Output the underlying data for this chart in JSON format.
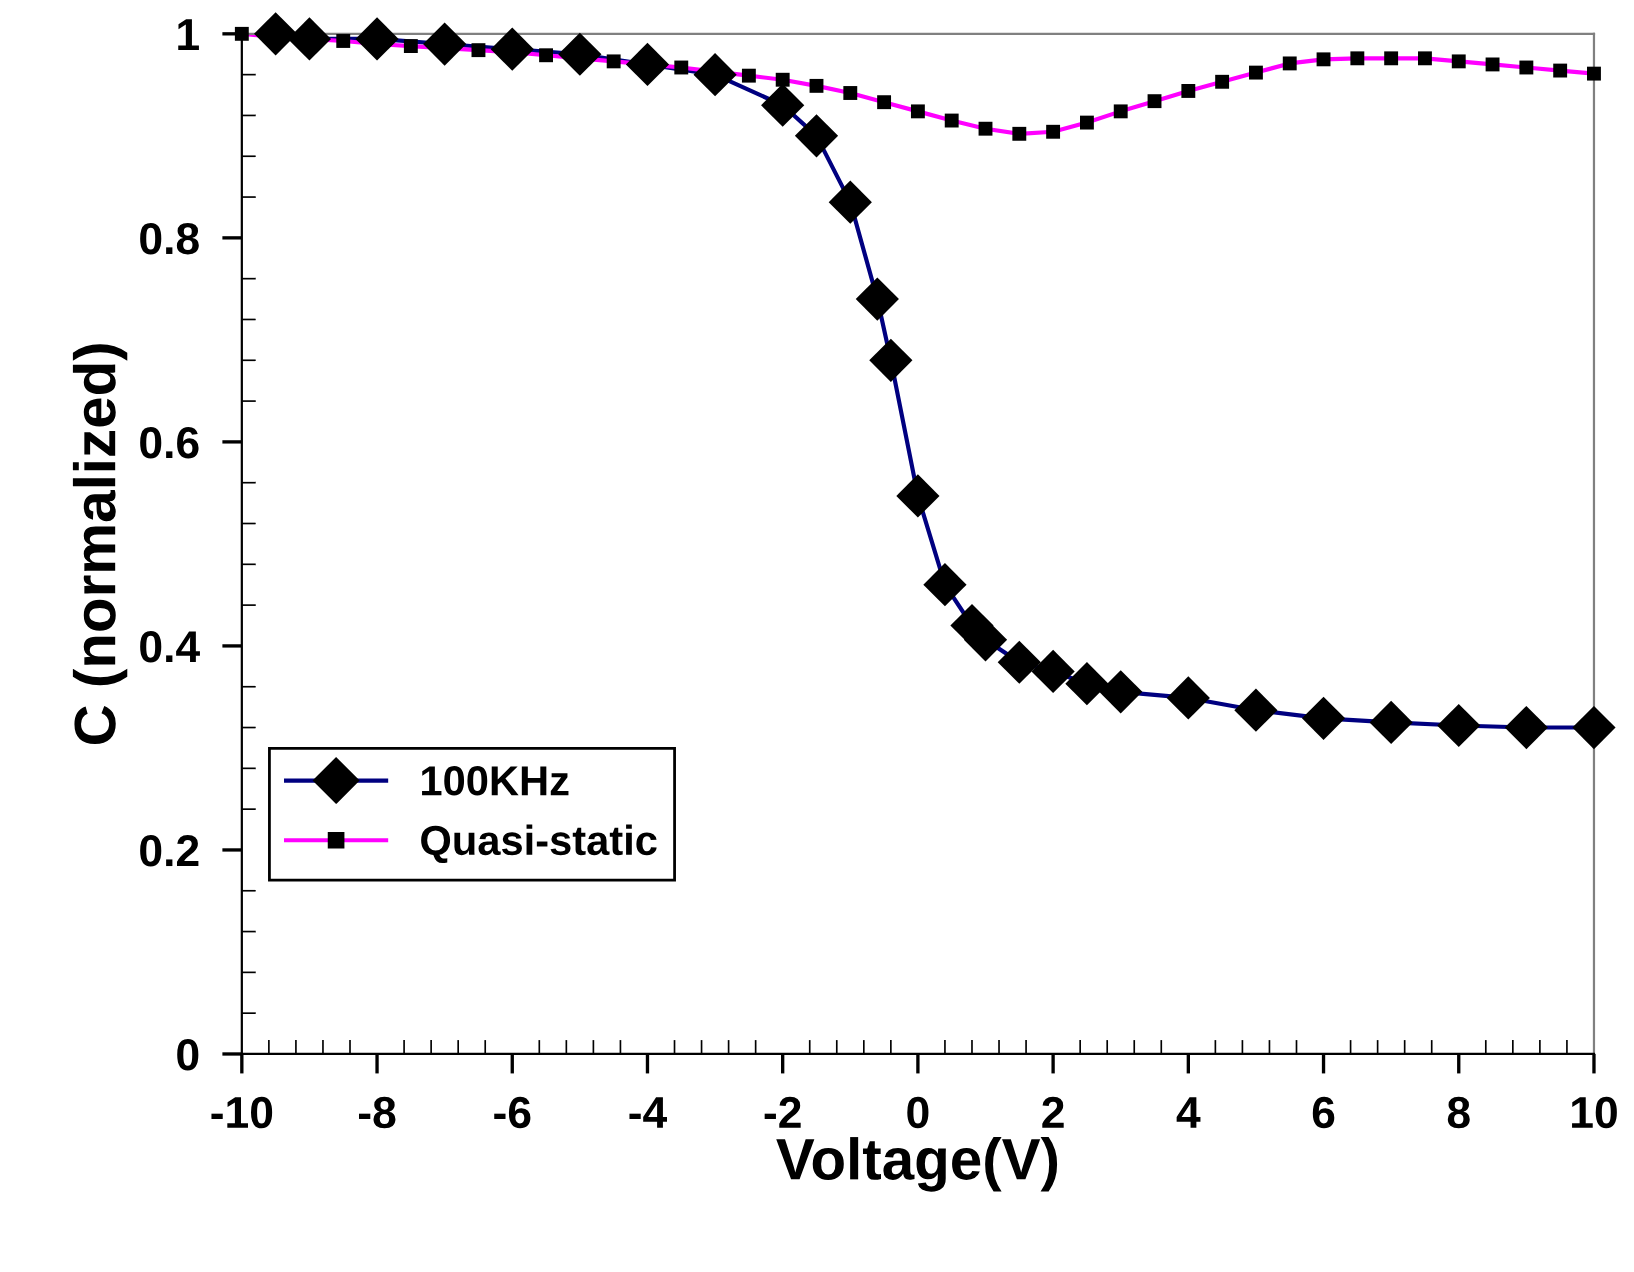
{
  "chart_data": {
    "type": "line",
    "xlabel": "Voltage(V)",
    "ylabel": "C (normalized)",
    "xlim": [
      -10,
      10
    ],
    "xticks": [
      -10,
      -8,
      -6,
      -4,
      -2,
      0,
      2,
      4,
      6,
      8,
      10
    ],
    "ylim": [
      0,
      1
    ],
    "yticks": [
      0,
      0.2,
      0.4,
      0.6,
      0.8,
      1
    ],
    "grid": false,
    "legend": "bottom left",
    "series": [
      {
        "name": "100KHz",
        "color": "#000080",
        "marker": "diamond",
        "colors": [
          "#000000",
          "#000000",
          "#000000",
          "#000000",
          "#000000",
          "#000000",
          "#000000",
          "#000000",
          "#000000",
          "#000000",
          "#000000",
          "#000000",
          "#000000",
          "#000000",
          "#000000",
          "#000000",
          "#000000",
          "#000000",
          "#000000",
          "#000000",
          "#000000",
          "#000000",
          "#000000",
          "#000000",
          "#000000",
          "#000000",
          "#000000",
          "#000000"
        ],
        "x": [
          -9.5,
          -9,
          -8,
          -7,
          -6,
          -5,
          -4,
          -3,
          -2,
          -1.5,
          -1,
          -0.6,
          -0.4,
          0,
          0.4,
          0.8,
          1,
          1.5,
          2,
          2.5,
          3,
          4,
          5,
          6,
          7,
          8,
          9,
          10
        ],
        "values": [
          1.0,
          0.995,
          0.995,
          0.99,
          0.985,
          0.98,
          0.97,
          0.96,
          0.93,
          0.9,
          0.835,
          0.74,
          0.68,
          0.547,
          0.46,
          0.42,
          0.406,
          0.384,
          0.375,
          0.363,
          0.355,
          0.349,
          0.337,
          0.329,
          0.325,
          0.322,
          0.32,
          0.32
        ]
      },
      {
        "name": "Quasi-static",
        "color": "#ff00ff",
        "marker": "square",
        "colors": [
          "#000000",
          "#000000",
          "#000000",
          "#000000",
          "#000000",
          "#000000",
          "#000000",
          "#000000",
          "#000000",
          "#000000",
          "#000000",
          "#000000",
          "#000000",
          "#000000",
          "#000000",
          "#000000",
          "#000000",
          "#000000",
          "#000000",
          "#000000",
          "#000000",
          "#000000",
          "#000000",
          "#000000",
          "#000000",
          "#000000",
          "#000000",
          "#000000",
          "#000000",
          "#000000",
          "#000000",
          "#000000",
          "#000000",
          "#000000",
          "#000000",
          "#000000",
          "#000000",
          "#000000",
          "#000000",
          "#000000",
          "#000000"
        ],
        "x": [
          -10,
          -9.5,
          -9,
          -8.5,
          -8,
          -7.5,
          -7,
          -6.5,
          -6,
          -5.5,
          -5,
          -4.5,
          -4,
          -3.5,
          -3,
          -2.5,
          -2,
          -1.5,
          -1,
          -0.5,
          0,
          0.5,
          1,
          1.5,
          2,
          2.5,
          3,
          3.5,
          4,
          4.5,
          5,
          5.5,
          6,
          6.5,
          7,
          7.5,
          8,
          8.5,
          9,
          9.5,
          10
        ],
        "values": [
          1.0,
          0.997,
          0.995,
          0.993,
          0.99,
          0.988,
          0.986,
          0.984,
          0.982,
          0.979,
          0.976,
          0.973,
          0.97,
          0.967,
          0.963,
          0.959,
          0.955,
          0.949,
          0.942,
          0.933,
          0.924,
          0.915,
          0.907,
          0.902,
          0.904,
          0.913,
          0.924,
          0.934,
          0.944,
          0.953,
          0.962,
          0.971,
          0.975,
          0.976,
          0.976,
          0.976,
          0.973,
          0.97,
          0.967,
          0.964,
          0.961
        ]
      }
    ]
  }
}
